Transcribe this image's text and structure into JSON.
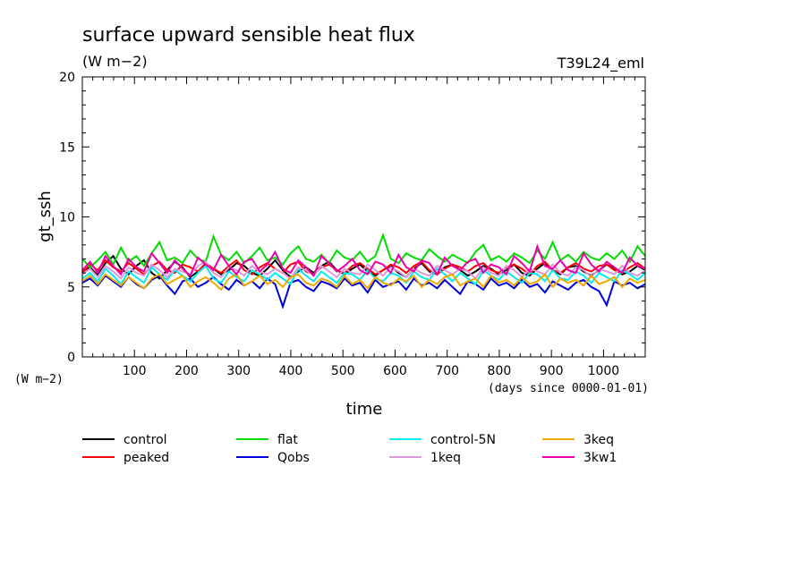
{
  "chart_data": {
    "type": "line",
    "title": "surface upward sensible heat flux",
    "subtitle": "(W m−2)",
    "run_label": "T39L24_eml",
    "ylabel": "gt_ssh",
    "yunit": "(W m−2)",
    "xlabel": "time",
    "xunit": "(days since 0000-01-01)",
    "xlim": [
      0,
      1080
    ],
    "ylim": [
      0,
      20
    ],
    "xticks": [
      100,
      200,
      300,
      400,
      500,
      600,
      700,
      800,
      900,
      1000
    ],
    "yticks": [
      0,
      5,
      10,
      15,
      20
    ],
    "grid": false,
    "legend_position": "bottom",
    "series": [
      {
        "name": "control",
        "color": "#000000",
        "values": [
          6.1,
          6.4,
          5.8,
          6.7,
          7.2,
          6.3,
          5.9,
          6.5,
          6.9,
          6.0,
          5.6,
          6.2,
          6.8,
          6.4,
          5.7,
          6.1,
          6.6,
          6.3,
          5.9,
          6.2,
          6.7,
          6.5,
          6.0,
          5.8,
          6.3,
          6.9,
          6.2,
          5.7,
          6.1,
          6.4,
          6.0,
          6.5,
          6.8,
          6.2,
          5.9,
          6.3,
          6.6,
          6.1,
          5.8,
          6.2,
          6.5,
          6.0,
          5.7,
          6.3,
          6.7,
          6.1,
          5.9,
          6.4,
          6.6,
          6.2,
          5.8,
          6.1,
          6.5,
          6.3,
          5.9,
          6.2,
          6.6,
          6.0,
          5.8,
          6.3,
          6.7,
          6.2,
          5.9,
          6.4,
          6.5,
          6.1,
          5.8,
          6.2,
          6.6,
          6.3,
          5.9,
          6.1,
          6.5,
          6.2
        ]
      },
      {
        "name": "peaked",
        "color": "#ff0000",
        "values": [
          6.0,
          6.6,
          6.2,
          6.9,
          6.4,
          6.1,
          6.7,
          6.3,
          5.9,
          6.5,
          6.8,
          6.2,
          6.0,
          6.6,
          6.4,
          6.1,
          6.7,
          6.3,
          6.0,
          6.5,
          6.9,
          6.2,
          5.9,
          6.4,
          6.7,
          6.3,
          6.0,
          6.6,
          6.8,
          6.1,
          5.9,
          6.4,
          6.6,
          6.2,
          6.0,
          6.5,
          6.7,
          6.3,
          5.9,
          6.2,
          6.6,
          6.4,
          6.0,
          6.5,
          6.8,
          6.2,
          5.9,
          6.3,
          6.6,
          6.4,
          6.1,
          6.5,
          6.7,
          6.2,
          6.0,
          6.4,
          6.6,
          6.3,
          5.9,
          6.5,
          6.8,
          6.2,
          6.0,
          6.4,
          6.7,
          6.3,
          6.1,
          6.5,
          6.6,
          6.2,
          6.0,
          6.4,
          6.7,
          6.3
        ]
      },
      {
        "name": "flat",
        "color": "#00dd00",
        "values": [
          7.0,
          6.4,
          6.9,
          7.5,
          6.6,
          7.8,
          6.8,
          7.2,
          6.5,
          7.4,
          8.2,
          6.9,
          7.1,
          6.7,
          7.6,
          7.0,
          6.8,
          8.6,
          7.3,
          6.9,
          7.5,
          6.7,
          7.2,
          7.8,
          6.9,
          7.1,
          6.6,
          7.4,
          7.9,
          7.0,
          6.8,
          7.3,
          6.7,
          7.6,
          7.1,
          6.9,
          7.5,
          6.8,
          7.2,
          8.7,
          7.0,
          6.7,
          7.4,
          7.1,
          6.9,
          7.7,
          7.2,
          6.8,
          7.3,
          7.0,
          6.7,
          7.5,
          8.0,
          6.9,
          7.2,
          6.8,
          7.4,
          7.1,
          6.7,
          7.6,
          7.0,
          8.2,
          6.9,
          7.3,
          6.8,
          7.5,
          7.1,
          6.9,
          7.4,
          7.0,
          7.6,
          6.8,
          7.9,
          7.2
        ]
      },
      {
        "name": "Qobs",
        "color": "#0000dd",
        "values": [
          5.3,
          5.6,
          5.1,
          5.8,
          5.4,
          5.0,
          5.7,
          5.2,
          4.9,
          5.5,
          5.8,
          5.1,
          4.5,
          5.4,
          5.6,
          5.0,
          5.3,
          5.7,
          5.2,
          4.8,
          5.5,
          5.1,
          5.4,
          4.9,
          5.6,
          5.2,
          3.6,
          5.3,
          5.5,
          5.0,
          4.7,
          5.4,
          5.2,
          4.9,
          5.6,
          5.1,
          5.3,
          4.6,
          5.5,
          5.0,
          5.2,
          5.4,
          4.8,
          5.6,
          5.1,
          5.3,
          4.9,
          5.5,
          5.0,
          4.5,
          5.4,
          5.2,
          4.8,
          5.6,
          5.1,
          5.3,
          4.9,
          5.5,
          5.0,
          5.2,
          4.6,
          5.4,
          5.1,
          4.8,
          5.3,
          5.5,
          5.0,
          4.7,
          3.7,
          5.4,
          5.1,
          5.3,
          4.9,
          5.2
        ]
      },
      {
        "name": "control-5N",
        "color": "#00eeee",
        "values": [
          5.6,
          6.0,
          5.4,
          6.3,
          5.8,
          5.2,
          6.1,
          5.7,
          5.3,
          6.4,
          5.9,
          5.5,
          6.2,
          5.8,
          5.4,
          6.0,
          6.5,
          5.6,
          5.3,
          6.1,
          5.7,
          5.4,
          6.2,
          5.9,
          5.5,
          6.0,
          5.6,
          5.2,
          6.3,
          5.8,
          5.4,
          6.1,
          5.7,
          5.3,
          6.0,
          5.9,
          5.5,
          6.2,
          5.6,
          5.4,
          6.0,
          5.8,
          5.3,
          6.1,
          5.7,
          5.5,
          6.3,
          5.9,
          5.4,
          6.0,
          5.6,
          5.2,
          6.2,
          5.8,
          5.5,
          6.1,
          5.7,
          5.3,
          6.0,
          5.9,
          5.4,
          6.2,
          5.6,
          5.5,
          6.1,
          5.8,
          5.3,
          6.0,
          5.7,
          5.4,
          6.2,
          5.9,
          5.5,
          6.0
        ]
      },
      {
        "name": "1keq",
        "color": "#dd99dd",
        "values": [
          5.9,
          6.3,
          5.7,
          6.5,
          6.1,
          5.6,
          6.4,
          6.0,
          5.8,
          6.6,
          6.2,
          5.7,
          6.3,
          6.1,
          5.9,
          6.5,
          6.8,
          6.0,
          5.7,
          6.4,
          6.2,
          5.8,
          6.5,
          6.1,
          5.9,
          6.3,
          6.0,
          5.6,
          6.4,
          6.2,
          5.8,
          6.5,
          6.1,
          5.7,
          6.3,
          6.0,
          5.9,
          6.6,
          6.2,
          5.8,
          6.4,
          6.1,
          5.7,
          6.3,
          6.0,
          5.8,
          6.5,
          6.2,
          5.9,
          6.3,
          6.1,
          5.6,
          6.4,
          6.0,
          5.8,
          6.5,
          6.2,
          5.7,
          6.3,
          6.1,
          5.9,
          6.6,
          6.0,
          5.8,
          6.4,
          6.2,
          5.7,
          6.3,
          6.1,
          5.9,
          6.5,
          6.0,
          5.8,
          6.2
        ]
      },
      {
        "name": "3keq",
        "color": "#eeaa00",
        "values": [
          5.4,
          5.8,
          5.2,
          5.9,
          5.5,
          5.1,
          5.7,
          5.3,
          4.9,
          5.6,
          5.9,
          5.2,
          5.5,
          5.8,
          5.0,
          5.4,
          5.7,
          5.3,
          4.8,
          5.6,
          5.9,
          5.1,
          5.4,
          5.8,
          5.2,
          5.5,
          5.0,
          5.7,
          5.9,
          5.3,
          5.1,
          5.6,
          5.4,
          5.0,
          5.8,
          5.2,
          5.5,
          4.9,
          5.7,
          5.3,
          5.1,
          5.6,
          5.4,
          5.8,
          5.0,
          5.5,
          5.2,
          5.7,
          5.9,
          5.1,
          5.4,
          5.6,
          5.0,
          5.8,
          5.3,
          5.5,
          5.1,
          5.7,
          5.2,
          5.4,
          5.9,
          5.0,
          5.6,
          5.3,
          5.5,
          5.1,
          5.8,
          5.2,
          5.4,
          5.7,
          5.0,
          5.6,
          5.3,
          5.5
        ]
      },
      {
        "name": "3kw1",
        "color": "#ee00aa",
        "values": [
          6.2,
          6.8,
          6.0,
          7.2,
          6.5,
          5.9,
          7.0,
          6.4,
          6.1,
          7.4,
          6.7,
          6.0,
          6.9,
          6.3,
          5.8,
          7.1,
          6.6,
          6.2,
          7.3,
          6.5,
          5.9,
          6.8,
          7.0,
          6.1,
          6.6,
          7.5,
          6.3,
          6.0,
          6.9,
          6.4,
          5.8,
          7.2,
          6.7,
          6.1,
          6.5,
          7.0,
          6.2,
          5.9,
          6.8,
          6.6,
          6.0,
          7.3,
          6.4,
          6.1,
          6.9,
          6.7,
          5.9,
          7.1,
          6.5,
          6.2,
          6.8,
          7.0,
          6.0,
          6.6,
          6.4,
          5.9,
          7.2,
          6.7,
          6.1,
          7.9,
          6.5,
          6.3,
          6.9,
          6.2,
          6.0,
          7.4,
          6.6,
          6.1,
          6.8,
          6.4,
          6.0,
          7.1,
          6.5,
          6.3
        ]
      }
    ]
  }
}
